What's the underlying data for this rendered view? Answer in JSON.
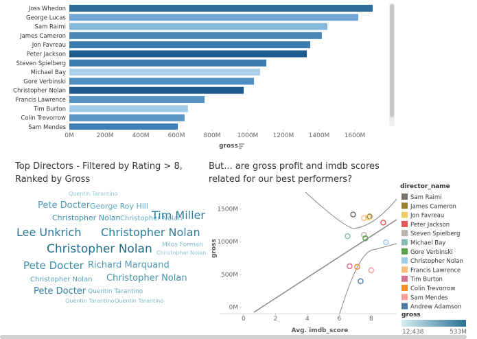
{
  "chart_data": [
    {
      "type": "hbar",
      "categories": [
        "Joss Whedon",
        "George Lucas",
        "Sam Raimi",
        "James Cameron",
        "Jon Favreau",
        "Peter Jackson",
        "Steven Spielberg",
        "Michael Bay",
        "Gore Verbinski",
        "Christopher Nolan",
        "Francis Lawrence",
        "Tim Burton",
        "Colin Trevorrow",
        "Sam Mendes"
      ],
      "values": [
        1700,
        1619,
        1446,
        1415,
        1350,
        1331,
        1104,
        1069,
        1035,
        977,
        758,
        665,
        646,
        608
      ],
      "colors": [
        "#2f6d9f",
        "#6fa6d3",
        "#86b8dc",
        "#4a88b8",
        "#3a7cb0",
        "#1f5a8e",
        "#3c7eb2",
        "#a9d0ea",
        "#4f8ec0",
        "#1e5a8f",
        "#5794c4",
        "#a3cce8",
        "#5a96c6",
        "#3f80b4"
      ],
      "xlim": [
        0,
        1800
      ],
      "xticks": [
        {
          "value": 0,
          "label": "0M"
        },
        {
          "value": 200,
          "label": "200M"
        },
        {
          "value": 400,
          "label": "400M"
        },
        {
          "value": 600,
          "label": "600M"
        },
        {
          "value": 800,
          "label": "800M"
        },
        {
          "value": 1000,
          "label": "1000M"
        },
        {
          "value": 1200,
          "label": "1200M"
        },
        {
          "value": 1400,
          "label": "1400M"
        },
        {
          "value": 1600,
          "label": "1600M"
        }
      ],
      "x_label": "gross"
    },
    {
      "type": "wordcloud",
      "title": [
        "Top Directors - Filtered by Rating > 8,",
        "Ranked by Gross"
      ],
      "words": [
        "Quentin Tarantino",
        "Pete Docter",
        "George Roy Hill",
        "Christopher Nolan",
        "Christopher Nolan",
        "Tim Miller",
        "Lee Unkrich",
        "Christopher Nolan",
        "Milos Forman",
        "Christopher Nolan",
        "Christopher Nolan",
        "Pete Docter",
        "Richard Marquand",
        "Christopher Nolan",
        "Christopher Nolan",
        "Pete Docter",
        "Quentin Tarantino",
        "Quentin Tarantino",
        "Quentin Tarantino"
      ]
    },
    {
      "type": "scatter",
      "title": [
        "But... are gross profit and imdb scores",
        "related  for our best performers?"
      ],
      "x_label": "Avg. imdb_score",
      "y_label": "gross",
      "xlim": [
        -1.5,
        9.6
      ],
      "xticks": [
        0,
        2,
        4,
        6,
        8
      ],
      "ylim": [
        -100,
        1800
      ],
      "yticks": [
        {
          "value": 0,
          "label": "0M"
        },
        {
          "value": 500,
          "label": "500M"
        },
        {
          "value": 1000,
          "label": "1000M"
        },
        {
          "value": 1500,
          "label": "1500M"
        }
      ],
      "legend_title": "director_name",
      "series": [
        {
          "name": "Sam Raimi",
          "color": "#79706e",
          "x": [
            6.87
          ],
          "values": [
            1416
          ]
        },
        {
          "name": "James Cameron",
          "color": "#9c7f2e",
          "x": [
            7.9
          ],
          "values": [
            1385
          ]
        },
        {
          "name": "Jon Favreau",
          "color": "#f1ce63",
          "x": [
            7.8
          ],
          "values": [
            1370
          ]
        },
        {
          "name": "Peter Jackson",
          "color": "#e15759",
          "x": [
            8.76
          ],
          "values": [
            1292
          ]
        },
        {
          "name": "Steven Spielberg",
          "color": "#bab0ac",
          "x": [
            7.55
          ],
          "values": [
            1104
          ]
        },
        {
          "name": "Michael Bay",
          "color": "#86bcb6",
          "x": [
            6.52
          ],
          "values": [
            1083
          ]
        },
        {
          "name": "Gore Verbinski",
          "color": "#59a14f",
          "x": [
            7.64
          ],
          "values": [
            1052
          ]
        },
        {
          "name": "Christopher Nolan",
          "color": "#a0cbe8",
          "x": [
            8.93
          ],
          "values": [
            990
          ]
        },
        {
          "name": "Francis Lawrence",
          "color": "#ffbe7d",
          "x": [
            7.55
          ],
          "values": [
            1360
          ]
        },
        {
          "name": "Tim Burton",
          "color": "#d37295",
          "x": [
            6.65
          ],
          "values": [
            625
          ]
        },
        {
          "name": "Colin Trevorrow",
          "color": "#f28e2b",
          "x": [
            7.12
          ],
          "values": [
            615
          ]
        },
        {
          "name": "Sam Mendes",
          "color": "#ff9d9a",
          "x": [
            8.0
          ],
          "values": [
            563
          ]
        },
        {
          "name": "Andrew Adamson",
          "color": "#4e79a7",
          "x": [
            7.34
          ],
          "values": [
            396
          ]
        }
      ],
      "color_legend": {
        "title": "gross",
        "min_label": "12,438",
        "max_label": "533M"
      }
    }
  ]
}
